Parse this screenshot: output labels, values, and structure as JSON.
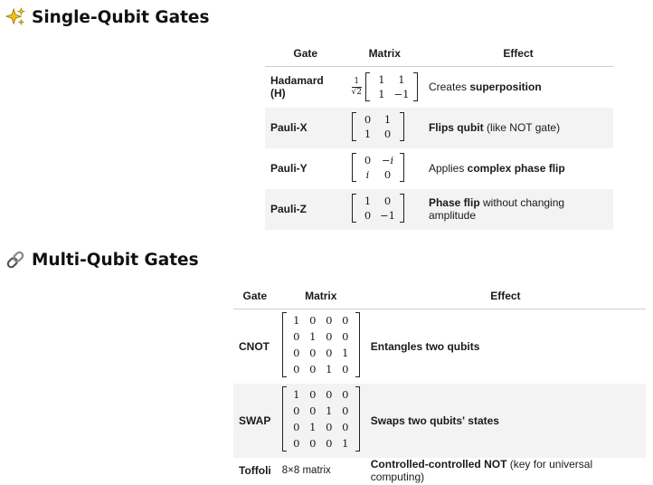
{
  "single": {
    "heading": "Single-Qubit Gates",
    "emoji": "sparkles-icon",
    "headers": [
      "Gate",
      "Matrix",
      "Effect"
    ],
    "rows": [
      {
        "gate": "Hadamard (H)",
        "frac_num": "1",
        "frac_den": "√2",
        "m": [
          "1",
          "1",
          "1",
          "−1"
        ],
        "effect_pre": "Creates ",
        "effect_bold": "superposition",
        "effect_post": ""
      },
      {
        "gate": "Pauli-X",
        "m": [
          "0",
          "1",
          "1",
          "0"
        ],
        "effect_pre": "",
        "effect_bold": "Flips qubit",
        "effect_post": " (like NOT gate)"
      },
      {
        "gate": "Pauli-Y",
        "m": [
          "0",
          "−i",
          "i",
          "0"
        ],
        "effect_pre": "Applies ",
        "effect_bold": "complex phase flip",
        "effect_post": ""
      },
      {
        "gate": "Pauli-Z",
        "m": [
          "1",
          "0",
          "0",
          "−1"
        ],
        "effect_pre": "",
        "effect_bold": "Phase flip",
        "effect_post": " without changing amplitude"
      }
    ]
  },
  "multi": {
    "heading": "Multi-Qubit Gates",
    "emoji": "link-icon",
    "headers": [
      "Gate",
      "Matrix",
      "Effect"
    ],
    "rows": [
      {
        "gate": "CNOT",
        "m": [
          "1",
          "0",
          "0",
          "0",
          "0",
          "1",
          "0",
          "0",
          "0",
          "0",
          "0",
          "1",
          "0",
          "0",
          "1",
          "0"
        ],
        "effect_bold": "Entangles two qubits",
        "effect_post": ""
      },
      {
        "gate": "SWAP",
        "m": [
          "1",
          "0",
          "0",
          "0",
          "0",
          "0",
          "1",
          "0",
          "0",
          "1",
          "0",
          "0",
          "0",
          "0",
          "0",
          "1"
        ],
        "effect_bold": "Swaps two qubits' states",
        "effect_post": ""
      },
      {
        "gate": "Toffoli",
        "matrix_text": "8×8 matrix",
        "effect_bold": "Controlled-controlled NOT",
        "effect_post": " (key for universal computing)"
      }
    ]
  }
}
